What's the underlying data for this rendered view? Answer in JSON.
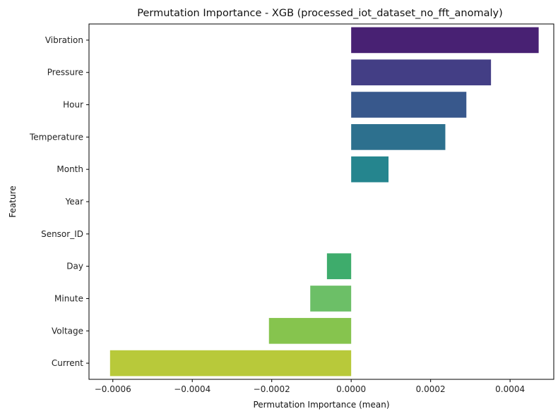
{
  "chart_data": {
    "type": "bar",
    "orientation": "horizontal",
    "title": "Permutation Importance - XGB (processed_iot_dataset_no_fft_anomaly)",
    "xlabel": "Permutation Importance (mean)",
    "ylabel": "Feature",
    "xlim": [
      -0.00066,
      0.00051
    ],
    "xticks": [
      -0.0006,
      -0.0004,
      -0.0002,
      0.0,
      0.0002,
      0.0004
    ],
    "xtick_labels": [
      "−0.0006",
      "−0.0004",
      "−0.0002",
      "0.0000",
      "0.0002",
      "0.0004"
    ],
    "grid": false,
    "legend": "none",
    "palette": "viridis",
    "categories": [
      "Vibration",
      "Pressure",
      "Hour",
      "Temperature",
      "Month",
      "Year",
      "Sensor_ID",
      "Day",
      "Minute",
      "Voltage",
      "Current"
    ],
    "values": [
      0.000472,
      0.000352,
      0.00029,
      0.000237,
      9.4e-05,
      0.0,
      0.0,
      -6.1e-05,
      -0.000103,
      -0.000207,
      -0.000607
    ],
    "colors": [
      "#482173",
      "#433e85",
      "#38588c",
      "#2d708e",
      "#25858e",
      "#1e9b8a",
      "#2ab07f",
      "#3eac6c",
      "#6cbf67",
      "#86c44e",
      "#b8c93a"
    ]
  }
}
